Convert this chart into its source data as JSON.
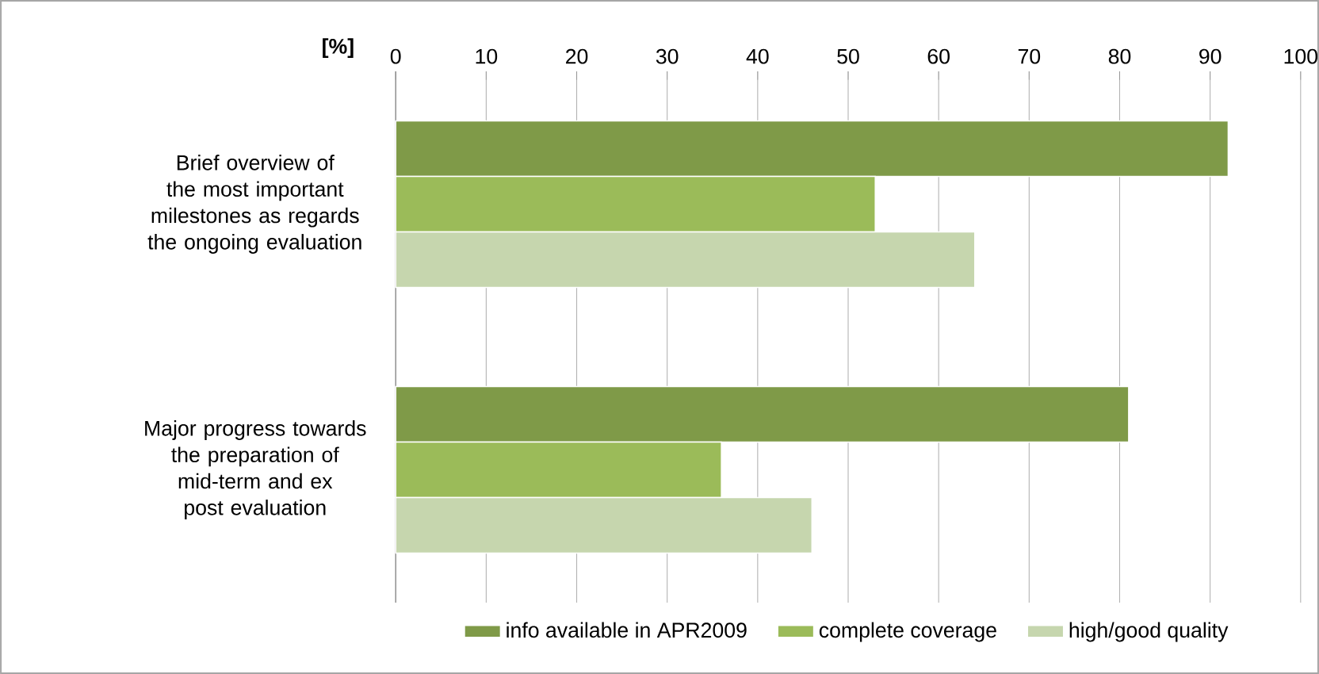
{
  "chart_data": {
    "type": "bar",
    "orientation": "horizontal",
    "xlabel": "[%]",
    "categories": [
      "Brief overview of the most important milestones as regards the ongoing evaluation",
      "Major progress towards the preparation of mid-term and ex post evaluation"
    ],
    "series": [
      {
        "name": "info available in APR2009",
        "color": "#7f9a48",
        "values": [
          92,
          81
        ]
      },
      {
        "name": "complete coverage",
        "color": "#9bbb59",
        "values": [
          53,
          36
        ]
      },
      {
        "name": "high/good quality",
        "color": "#c6d6ae",
        "values": [
          64,
          46
        ]
      }
    ],
    "xlim": [
      0,
      100
    ],
    "xticks": [
      0,
      10,
      20,
      30,
      40,
      50,
      60,
      70,
      80,
      90,
      100
    ],
    "grid": "x",
    "legend": "bottom"
  }
}
